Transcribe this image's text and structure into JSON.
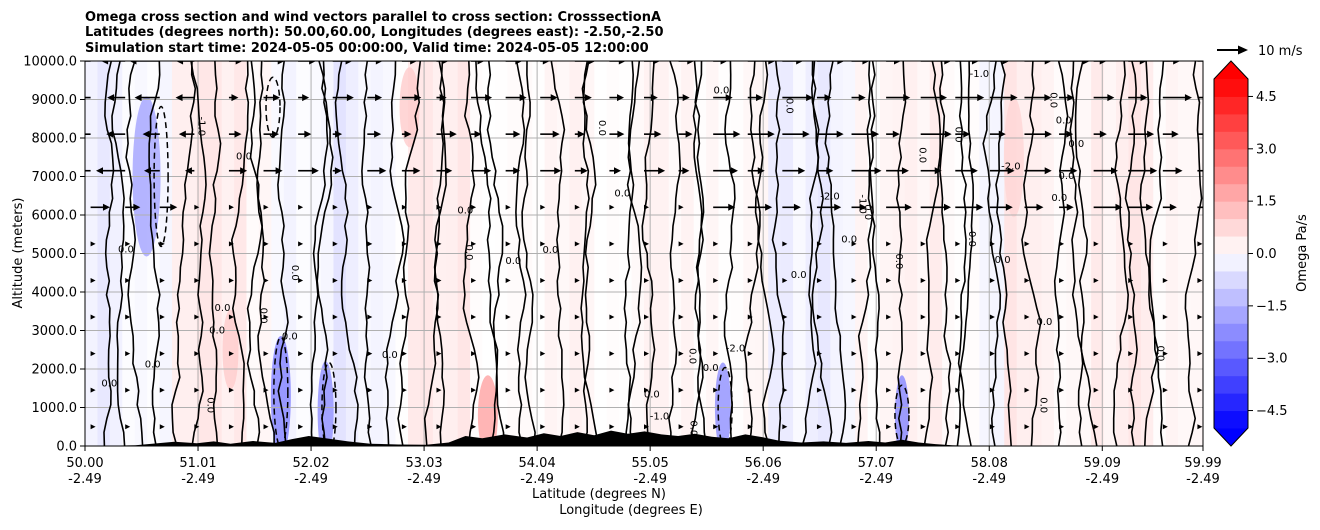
{
  "chart_data": {
    "type": "heatmap",
    "title_lines": [
      "Omega cross section and wind vectors parallel to cross section: CrosssectionA",
      "Latitudes (degrees north): 50.00,60.00, Longitudes (degrees east): -2.50,-2.50",
      "Simulation start time: 2024-05-05 00:00:00, Valid time: 2024-05-05 12:00:00"
    ],
    "ylabel": "Altitude (meters)",
    "xlabel_lines": [
      "Latitude (degrees N)",
      "Longitude (degrees E)"
    ],
    "ylim": [
      0,
      10000
    ],
    "xlim": [
      50.0,
      59.99
    ],
    "y_ticks": [
      0,
      1000,
      2000,
      3000,
      4000,
      5000,
      6000,
      7000,
      8000,
      9000,
      10000
    ],
    "y_tick_labels": [
      "0.0",
      "1000.0",
      "2000.0",
      "3000.0",
      "4000.0",
      "5000.0",
      "6000.0",
      "7000.0",
      "8000.0",
      "9000.0",
      "10000.0"
    ],
    "x_ticks": [
      {
        "lat": 50.0,
        "lat_label": "50.00",
        "lon_label": "-2.49"
      },
      {
        "lat": 51.01,
        "lat_label": "51.01",
        "lon_label": "-2.49"
      },
      {
        "lat": 52.02,
        "lat_label": "52.02",
        "lon_label": "-2.49"
      },
      {
        "lat": 53.03,
        "lat_label": "53.03",
        "lon_label": "-2.49"
      },
      {
        "lat": 54.04,
        "lat_label": "54.04",
        "lon_label": "-2.49"
      },
      {
        "lat": 55.05,
        "lat_label": "55.05",
        "lon_label": "-2.49"
      },
      {
        "lat": 56.06,
        "lat_label": "56.06",
        "lon_label": "-2.49"
      },
      {
        "lat": 57.07,
        "lat_label": "57.07",
        "lon_label": "-2.49"
      },
      {
        "lat": 58.08,
        "lat_label": "58.08",
        "lon_label": "-2.49"
      },
      {
        "lat": 59.09,
        "lat_label": "59.09",
        "lon_label": "-2.49"
      },
      {
        "lat": 59.99,
        "lat_label": "59.99",
        "lon_label": "-2.49"
      }
    ],
    "grid": true,
    "colorbar": {
      "label": "Omega Pa/s",
      "range": [
        -5.0,
        5.0
      ],
      "extend": "both",
      "ticks": [
        -4.5,
        -3.0,
        -1.5,
        0.0,
        1.5,
        3.0,
        4.5
      ],
      "tick_labels": [
        "−4.5",
        "−3.0",
        "−1.5",
        "0.0",
        "1.5",
        "3.0",
        "4.5"
      ],
      "colormap": "bwr",
      "levels": 20
    },
    "quiver_key": {
      "label": "10 m/s",
      "speed": 10
    },
    "contour_levels": [
      -2.0,
      -1.0,
      0.0
    ],
    "contour_label_samples": [
      "0.0",
      "-1.0",
      "-2.0"
    ],
    "terrain": {
      "color": "#000000",
      "points": [
        [
          50.0,
          0
        ],
        [
          50.45,
          20
        ],
        [
          50.6,
          60
        ],
        [
          50.8,
          110
        ],
        [
          51.0,
          70
        ],
        [
          51.15,
          120
        ],
        [
          51.3,
          60
        ],
        [
          51.5,
          130
        ],
        [
          51.7,
          80
        ],
        [
          51.85,
          180
        ],
        [
          52.0,
          260
        ],
        [
          52.15,
          200
        ],
        [
          52.35,
          120
        ],
        [
          52.55,
          60
        ],
        [
          52.8,
          40
        ],
        [
          53.05,
          30
        ],
        [
          53.25,
          90
        ],
        [
          53.4,
          260
        ],
        [
          53.55,
          200
        ],
        [
          53.75,
          300
        ],
        [
          53.95,
          220
        ],
        [
          54.1,
          330
        ],
        [
          54.25,
          260
        ],
        [
          54.4,
          360
        ],
        [
          54.55,
          280
        ],
        [
          54.7,
          400
        ],
        [
          54.85,
          320
        ],
        [
          55.0,
          380
        ],
        [
          55.15,
          300
        ],
        [
          55.3,
          260
        ],
        [
          55.45,
          320
        ],
        [
          55.6,
          240
        ],
        [
          55.75,
          200
        ],
        [
          55.9,
          300
        ],
        [
          56.05,
          230
        ],
        [
          56.2,
          140
        ],
        [
          56.4,
          90
        ],
        [
          56.6,
          120
        ],
        [
          56.8,
          80
        ],
        [
          57.0,
          130
        ],
        [
          57.15,
          90
        ],
        [
          57.3,
          160
        ],
        [
          57.45,
          90
        ],
        [
          57.6,
          50
        ],
        [
          57.75,
          20
        ],
        [
          58.0,
          0
        ],
        [
          59.99,
          0
        ]
      ]
    }
  }
}
